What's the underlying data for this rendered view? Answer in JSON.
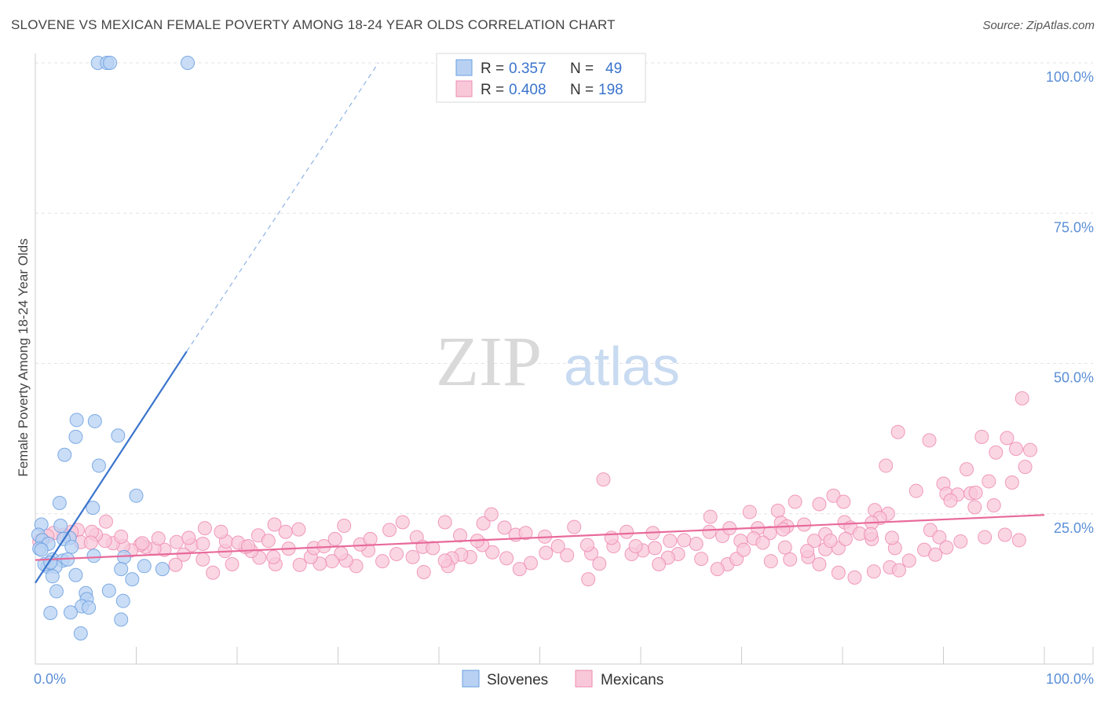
{
  "title": "SLOVENE VS MEXICAN FEMALE POVERTY AMONG 18-24 YEAR OLDS CORRELATION CHART",
  "source": "Source: ZipAtlas.com",
  "watermark": {
    "zip": "ZIP",
    "atlas": "atlas"
  },
  "chart_data": {
    "type": "scatter",
    "title": "SLOVENE VS MEXICAN FEMALE POVERTY AMONG 18-24 YEAR OLDS CORRELATION CHART",
    "xlabel": "",
    "ylabel": "Female Poverty Among 18-24 Year Olds",
    "xlim": [
      0,
      100
    ],
    "ylim": [
      0,
      100
    ],
    "x_tick_labels": [
      "0.0%",
      "100.0%"
    ],
    "y_ticks": [
      25,
      50,
      75,
      100
    ],
    "y_tick_labels": [
      "25.0%",
      "50.0%",
      "75.0%",
      "100.0%"
    ],
    "grid": true,
    "legend_position": "top-center",
    "stats": [
      {
        "r_label": "R =",
        "r_value": "0.357",
        "n_label": "N =",
        "n_value": "49"
      },
      {
        "r_label": "R =",
        "r_value": "0.408",
        "n_label": "N =",
        "n_value": "198"
      }
    ],
    "series": [
      {
        "name": "Slovenes",
        "color": "#6a9fe0",
        "fill": "#b8d1f3",
        "trend": {
          "x0": 0,
          "y0": 13.5,
          "x1": 15,
          "y1": 52,
          "dash_to_x": 34,
          "dash_to_y": 100
        },
        "points": [
          [
            6.2,
            100
          ],
          [
            7.1,
            100
          ],
          [
            7.4,
            100
          ],
          [
            15.1,
            100
          ],
          [
            4.1,
            40.6
          ],
          [
            5.9,
            40.4
          ],
          [
            4,
            37.8
          ],
          [
            8.2,
            38
          ],
          [
            2.9,
            34.8
          ],
          [
            6.3,
            33
          ],
          [
            10,
            28
          ],
          [
            2.4,
            26.8
          ],
          [
            5.7,
            26
          ],
          [
            0.6,
            23.2
          ],
          [
            2.5,
            23
          ],
          [
            0.3,
            21.5
          ],
          [
            0.7,
            20.6
          ],
          [
            3.4,
            21
          ],
          [
            1.3,
            20
          ],
          [
            0.4,
            19.2
          ],
          [
            0.6,
            19
          ],
          [
            2.8,
            20.8
          ],
          [
            3.6,
            19.5
          ],
          [
            1.7,
            17.4
          ],
          [
            2.7,
            17.2
          ],
          [
            3.2,
            17.4
          ],
          [
            5.8,
            18
          ],
          [
            8.8,
            17.8
          ],
          [
            1.2,
            16.2
          ],
          [
            0.9,
            16.6
          ],
          [
            2,
            16.2
          ],
          [
            1.5,
            16.9
          ],
          [
            8.5,
            15.8
          ],
          [
            10.8,
            16.3
          ],
          [
            12.6,
            15.8
          ],
          [
            4,
            14.8
          ],
          [
            1.7,
            14.6
          ],
          [
            9.6,
            14.1
          ],
          [
            2.1,
            12.1
          ],
          [
            5,
            11.8
          ],
          [
            7.3,
            12.2
          ],
          [
            5.1,
            10.8
          ],
          [
            8.7,
            10.5
          ],
          [
            4.6,
            9.6
          ],
          [
            5.3,
            9.4
          ],
          [
            1.5,
            8.5
          ],
          [
            3.5,
            8.6
          ],
          [
            8.5,
            7.4
          ],
          [
            4.5,
            5.1
          ]
        ]
      },
      {
        "name": "Mexicans",
        "color": "#ee8bb0",
        "fill": "#f8c8d9",
        "trend": {
          "x0": 0,
          "y0": 17.3,
          "x1": 100,
          "y1": 24.8
        },
        "points": [
          [
            97.8,
            44.2
          ],
          [
            85.5,
            38.6
          ],
          [
            88.6,
            37.2
          ],
          [
            93.8,
            37.8
          ],
          [
            96.3,
            37.6
          ],
          [
            98.6,
            35.6
          ],
          [
            95.2,
            35.2
          ],
          [
            97.2,
            35.8
          ],
          [
            98.1,
            32.8
          ],
          [
            84.3,
            33
          ],
          [
            92.3,
            32.4
          ],
          [
            90,
            30
          ],
          [
            87.3,
            28.8
          ],
          [
            94.5,
            30.4
          ],
          [
            96.8,
            30.2
          ],
          [
            90.3,
            28.3
          ],
          [
            91.4,
            28.2
          ],
          [
            92.7,
            28.4
          ],
          [
            93.2,
            28.5
          ],
          [
            90.7,
            27.2
          ],
          [
            95,
            26.4
          ],
          [
            93.1,
            26.1
          ],
          [
            79.1,
            28
          ],
          [
            80.1,
            27
          ],
          [
            84.5,
            25
          ],
          [
            56.3,
            30.7
          ],
          [
            75.3,
            27
          ],
          [
            77.7,
            26.6
          ],
          [
            70.8,
            25.3
          ],
          [
            73.6,
            25.5
          ],
          [
            83.2,
            25.6
          ],
          [
            83.7,
            24.3
          ],
          [
            73.9,
            23.5
          ],
          [
            74.5,
            22.9
          ],
          [
            76.2,
            23.2
          ],
          [
            80.2,
            23.6
          ],
          [
            82.9,
            23.5
          ],
          [
            88.7,
            22.3
          ],
          [
            89.6,
            21.1
          ],
          [
            91.7,
            20.4
          ],
          [
            94.1,
            21.1
          ],
          [
            96.1,
            21.5
          ],
          [
            97.5,
            20.6
          ],
          [
            88.1,
            19
          ],
          [
            90.3,
            19.4
          ],
          [
            89.2,
            18.2
          ],
          [
            71.6,
            22.6
          ],
          [
            72.8,
            21.8
          ],
          [
            74.1,
            22.4
          ],
          [
            78.3,
            21.6
          ],
          [
            80.8,
            22.7
          ],
          [
            81.7,
            21.7
          ],
          [
            82.9,
            20.8
          ],
          [
            85.2,
            19.3
          ],
          [
            86.6,
            17.2
          ],
          [
            77.2,
            20.5
          ],
          [
            78.3,
            19.1
          ],
          [
            79.6,
            19.3
          ],
          [
            66.8,
            22
          ],
          [
            68.1,
            21.3
          ],
          [
            69.9,
            20.5
          ],
          [
            71.2,
            20.9
          ],
          [
            65.5,
            20
          ],
          [
            64.3,
            20.6
          ],
          [
            63.7,
            18.3
          ],
          [
            60.2,
            18.9
          ],
          [
            61.4,
            19.3
          ],
          [
            62.7,
            17.7
          ],
          [
            66,
            17.5
          ],
          [
            68.6,
            16.6
          ],
          [
            67.6,
            15.8
          ],
          [
            69.5,
            17.5
          ],
          [
            72.9,
            17.1
          ],
          [
            74.8,
            17.4
          ],
          [
            76.6,
            17.8
          ],
          [
            77.7,
            16.6
          ],
          [
            79.6,
            15.2
          ],
          [
            81.2,
            14.4
          ],
          [
            83.1,
            15.4
          ],
          [
            84.7,
            16.1
          ],
          [
            85.6,
            15.6
          ],
          [
            61.8,
            16.6
          ],
          [
            59.1,
            18.3
          ],
          [
            57.3,
            19.6
          ],
          [
            55.1,
            18.4
          ],
          [
            55.9,
            16.7
          ],
          [
            54.8,
            14.1
          ],
          [
            52.7,
            18.1
          ],
          [
            50.6,
            18.5
          ],
          [
            49.1,
            16.8
          ],
          [
            48,
            15.8
          ],
          [
            46.7,
            17.6
          ],
          [
            45.3,
            18.6
          ],
          [
            44.3,
            19.8
          ],
          [
            43.1,
            17.8
          ],
          [
            42.2,
            18.2
          ],
          [
            41.3,
            17.6
          ],
          [
            40.9,
            16.3
          ],
          [
            40.6,
            17.2
          ],
          [
            38.5,
            15.3
          ],
          [
            37.4,
            17.8
          ],
          [
            35.8,
            18.3
          ],
          [
            34.4,
            17.1
          ],
          [
            33,
            18.9
          ],
          [
            31.8,
            16.3
          ],
          [
            30.8,
            17.2
          ],
          [
            30.3,
            18.4
          ],
          [
            29.4,
            17.1
          ],
          [
            28.2,
            16.7
          ],
          [
            27.3,
            17.8
          ],
          [
            26.2,
            16.5
          ],
          [
            25.1,
            19.2
          ],
          [
            23.8,
            16.6
          ],
          [
            23.6,
            17.8
          ],
          [
            22.2,
            17.7
          ],
          [
            21.4,
            18.8
          ],
          [
            20.8,
            19.5
          ],
          [
            19.5,
            16.6
          ],
          [
            18.8,
            18.8
          ],
          [
            17.6,
            15.2
          ],
          [
            16.6,
            17.4
          ],
          [
            15.5,
            19.8
          ],
          [
            14.7,
            18.2
          ],
          [
            13.9,
            16.5
          ],
          [
            12.8,
            19
          ],
          [
            11.8,
            19.2
          ],
          [
            10.9,
            19.5
          ],
          [
            10.4,
            19.8
          ],
          [
            9.5,
            18.9
          ],
          [
            8.7,
            19.6
          ],
          [
            7.7,
            20.1
          ],
          [
            6.9,
            20.5
          ],
          [
            6,
            21.5
          ],
          [
            5.6,
            22
          ],
          [
            4.2,
            22.3
          ],
          [
            3.6,
            22
          ],
          [
            2.8,
            21.5
          ],
          [
            1.8,
            21.8
          ],
          [
            1.2,
            21.3
          ],
          [
            0.6,
            20.7
          ],
          [
            0.4,
            20.4
          ],
          [
            4.5,
            20.3
          ],
          [
            5.5,
            20.2
          ],
          [
            7,
            23.7
          ],
          [
            8.5,
            21.2
          ],
          [
            10.6,
            20.1
          ],
          [
            12.2,
            20.9
          ],
          [
            14,
            20.3
          ],
          [
            15.2,
            21
          ],
          [
            16.6,
            20
          ],
          [
            18.9,
            20.4
          ],
          [
            20.1,
            20.2
          ],
          [
            21.1,
            19.6
          ],
          [
            22.1,
            21.4
          ],
          [
            23.1,
            20.5
          ],
          [
            23.7,
            23.2
          ],
          [
            24.8,
            22
          ],
          [
            26.1,
            22.4
          ],
          [
            27.6,
            19.3
          ],
          [
            28.6,
            19.6
          ],
          [
            29.7,
            20.8
          ],
          [
            30.6,
            23
          ],
          [
            32.2,
            19.9
          ],
          [
            33.2,
            20.8
          ],
          [
            35.1,
            22.3
          ],
          [
            36.4,
            23.6
          ],
          [
            37.8,
            21.1
          ],
          [
            38.4,
            19.5
          ],
          [
            39.4,
            19.3
          ],
          [
            40.6,
            23.6
          ],
          [
            42.1,
            21.4
          ],
          [
            43.8,
            20.5
          ],
          [
            44.4,
            23.4
          ],
          [
            45.2,
            24.9
          ],
          [
            46.5,
            22.7
          ],
          [
            47.6,
            21.5
          ],
          [
            48.6,
            21.8
          ],
          [
            50.5,
            21.2
          ],
          [
            51.8,
            19.6
          ],
          [
            53.4,
            22.8
          ],
          [
            54.7,
            19.8
          ],
          [
            57.1,
            21
          ],
          [
            58.6,
            22
          ],
          [
            59.5,
            19.6
          ],
          [
            61.2,
            21.8
          ],
          [
            62.9,
            20.5
          ],
          [
            66.9,
            24.5
          ],
          [
            68.8,
            22.6
          ],
          [
            70.2,
            19
          ],
          [
            72.1,
            20.2
          ],
          [
            74.3,
            19.4
          ],
          [
            76.5,
            18.8
          ],
          [
            78.8,
            20.5
          ],
          [
            80.3,
            20.8
          ],
          [
            82.8,
            21.6
          ],
          [
            84.9,
            21
          ],
          [
            16.8,
            22.6
          ],
          [
            18.4,
            22
          ]
        ]
      }
    ]
  }
}
